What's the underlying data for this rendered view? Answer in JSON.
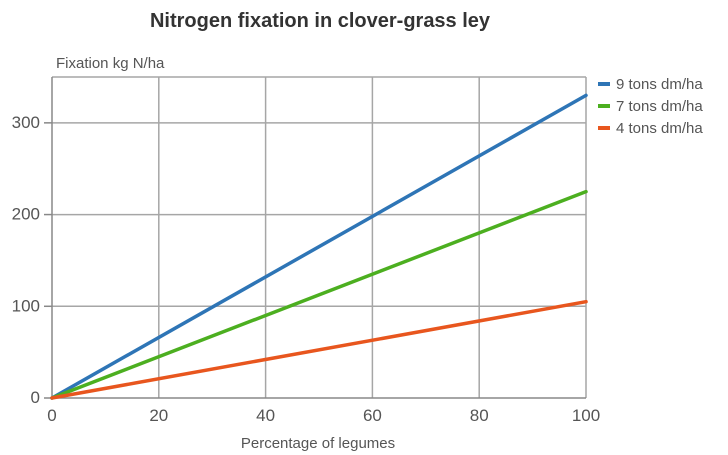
{
  "chart_data": {
    "type": "line",
    "title": "Nitrogen fixation in clover-grass ley",
    "xlabel": "Percentage of legumes",
    "ylabel": "Fixation kg N/ha",
    "x": [
      0,
      100
    ],
    "xlim": [
      0,
      100
    ],
    "ylim": [
      0,
      350
    ],
    "xticks": [
      0,
      20,
      40,
      60,
      80,
      100
    ],
    "yticks": [
      0,
      100,
      200,
      300
    ],
    "grid": true,
    "legend_position": "right",
    "series": [
      {
        "name": "9 tons dm/ha",
        "values": [
          0,
          330
        ],
        "color": "#2e75b6"
      },
      {
        "name": "7 tons dm/ha",
        "values": [
          0,
          225
        ],
        "color": "#4caf20"
      },
      {
        "name": "4 tons dm/ha",
        "values": [
          0,
          105
        ],
        "color": "#e8561e"
      }
    ]
  }
}
